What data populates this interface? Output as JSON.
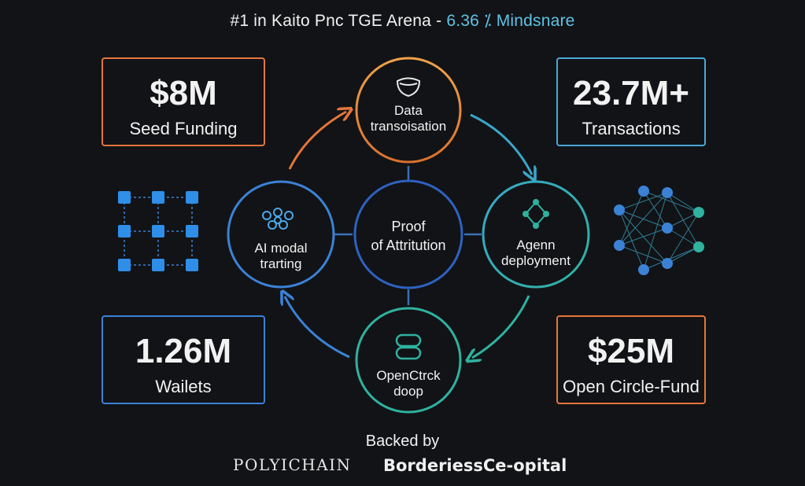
{
  "headline": {
    "prefix": "#1 in Kaito Pnc TGE Arena - ",
    "accent": "6.36 ⁒ Mindsnare"
  },
  "stats": {
    "seed": {
      "value": "$8M",
      "label": "Seed Funding",
      "color": "#e4763a"
    },
    "transactions": {
      "value": "23.7M+",
      "label": "Transactions",
      "color": "#4aa8d8"
    },
    "wallets": {
      "value": "1.26M",
      "label": "Wailets",
      "color": "#3b82d6"
    },
    "fund": {
      "value": "$25M",
      "label": "Open Circle-Fund",
      "color": "#e4763a"
    }
  },
  "nodes": {
    "center": {
      "line1": "Proof",
      "line2": "of Attritution",
      "color": "#2e62c0"
    },
    "top": {
      "line1": "Data",
      "line2": "transoisation",
      "color": "#e88a3a"
    },
    "left": {
      "line1": "AI modal",
      "line2": "trarting",
      "color": "#3b82d6"
    },
    "right": {
      "line1": "Agenn",
      "line2": "deployment",
      "color": "#2fb2a0"
    },
    "bottom": {
      "line1": "OpenCtrck",
      "line2": "doop",
      "color": "#2fb2a0"
    }
  },
  "footer": {
    "backed": "Backed by",
    "logo1": "POLYICHAIN",
    "logo2": "BorderiessCe-opital"
  }
}
